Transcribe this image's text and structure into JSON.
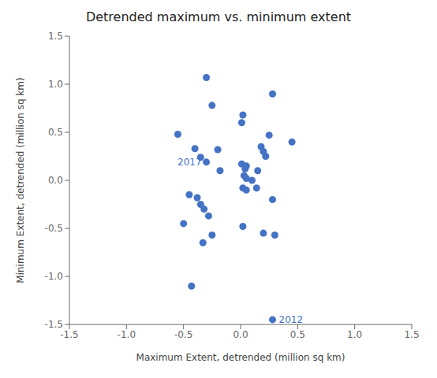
{
  "chart_data": {
    "type": "scatter",
    "title": "Detrended maximum vs. minimum extent",
    "x_label": "Maximum Extent, detrended (million sq km)",
    "y_label": "Minimum Extent, detrended (million sq km)",
    "x": [
      -0.55,
      -0.3,
      -0.25,
      -0.4,
      -0.35,
      -0.3,
      -0.2,
      -0.18,
      -0.45,
      -0.38,
      -0.35,
      -0.32,
      -0.28,
      -0.25,
      -0.5,
      -0.33,
      -0.43,
      0.02,
      0.01,
      0.05,
      0.04,
      0.01,
      0.03,
      0.05,
      0.1,
      0.02,
      0.05,
      0.02,
      0.14,
      0.18,
      0.2,
      0.25,
      0.22,
      0.15,
      0.28,
      0.2,
      0.3,
      0.45,
      0.28,
      0.28
    ],
    "values": [
      0.48,
      1.07,
      0.78,
      0.33,
      0.24,
      0.19,
      0.32,
      0.1,
      -0.15,
      -0.18,
      -0.25,
      -0.3,
      -0.37,
      -0.57,
      -0.45,
      -0.65,
      -1.1,
      0.68,
      0.6,
      0.15,
      0.12,
      0.17,
      0.05,
      0.02,
      0.0,
      -0.08,
      -0.1,
      -0.48,
      -0.08,
      0.35,
      0.3,
      0.47,
      0.25,
      0.1,
      -0.2,
      -0.55,
      -0.57,
      0.4,
      0.9,
      -1.45
    ],
    "color": "#4472C4",
    "xlim": [
      -1.5,
      1.5
    ],
    "ylim": [
      -1.5,
      1.5
    ],
    "xticks": [
      -1.5,
      {
        "value": -1.0,
        "label": "-1.0"
      },
      -0.5,
      {
        "value": 0,
        "label": "0.0"
      },
      0.5,
      {
        "value": 1.0,
        "label": "1.0"
      },
      1.5
    ],
    "yticks": [
      -1.5,
      {
        "value": -1.0,
        "label": "-1.0"
      },
      -0.5,
      {
        "value": 0,
        "label": "0.0"
      },
      0.5,
      {
        "value": 1.0,
        "label": "1.0"
      },
      1.5
    ],
    "grid": false,
    "annotations": [
      {
        "text": "2017",
        "x": -0.3,
        "y": 0.19
      },
      {
        "text": "2012",
        "x": 0.28,
        "y": -1.45
      }
    ]
  }
}
